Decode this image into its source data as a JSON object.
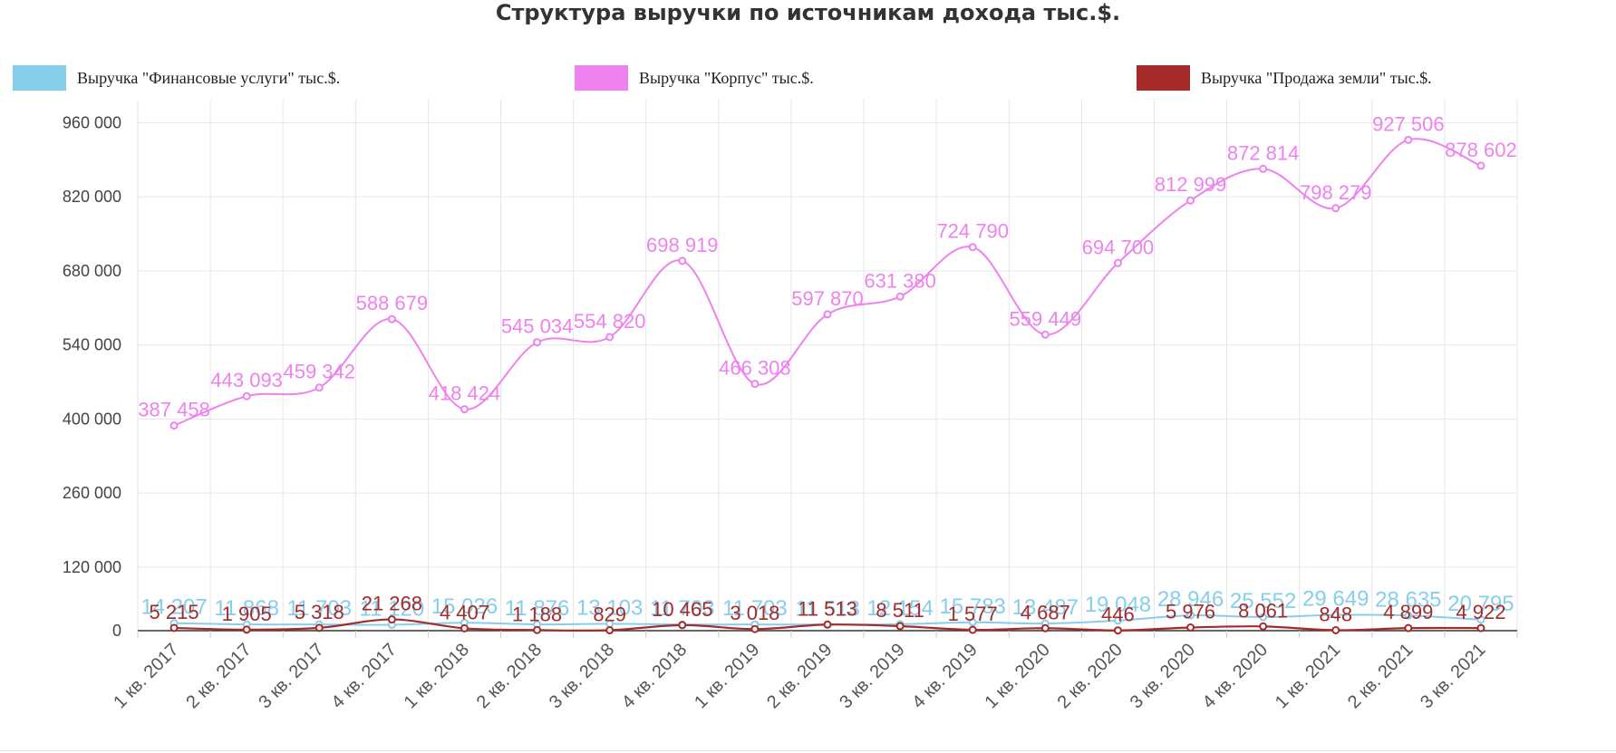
{
  "chart_data": {
    "type": "line",
    "title": "Структура выручки по источникам дохода тыс.$.",
    "xlabel": "",
    "ylabel": "",
    "ylim": [
      0,
      1000000
    ],
    "yticks": [
      0,
      120000,
      260000,
      400000,
      540000,
      680000,
      820000,
      960000
    ],
    "ytick_labels": [
      "0",
      "120 000",
      "260 000",
      "400 000",
      "540 000",
      "680 000",
      "820 000",
      "960 000"
    ],
    "grid": true,
    "legend_position": "top",
    "categories": [
      "1 кв. 2017",
      "2 кв. 2017",
      "3 кв. 2017",
      "4 кв. 2017",
      "1 кв. 2018",
      "2 кв. 2018",
      "3 кв. 2018",
      "4 кв. 2018",
      "1 кв. 2019",
      "2 кв. 2019",
      "3 кв. 2019",
      "4 кв. 2019",
      "1 кв. 2020",
      "2 кв. 2020",
      "3 кв. 2020",
      "4 кв. 2020",
      "1 кв. 2021",
      "2 кв. 2021",
      "3 кв. 2021"
    ],
    "series": [
      {
        "name": "Выручка \"Финансовые услуги\" тыс.$.",
        "color": "#87ceeb",
        "values": [
          14207,
          11868,
          11703,
          11120,
          15026,
          11876,
          13103,
          11703,
          11703,
          11513,
          12154,
          15783,
          13487,
          19048,
          28946,
          25552,
          29649,
          28635,
          20795
        ],
        "labels": [
          "14 207",
          "11 868",
          "11 703",
          "11 120",
          "15 026",
          "11 876",
          "13 103",
          "11 703",
          "11 703",
          "11 513",
          "12 154",
          "15 783",
          "13 487",
          "19 048",
          "28 946",
          "25 552",
          "29 649",
          "28 635",
          "20 795"
        ]
      },
      {
        "name": "Выручка \"Корпус\" тыс.$.",
        "color": "#ee82ee",
        "values": [
          387458,
          443093,
          459342,
          588679,
          418424,
          545034,
          554820,
          698919,
          466308,
          597870,
          631380,
          724790,
          559449,
          694700,
          812999,
          872814,
          798279,
          927506,
          878602
        ],
        "labels": [
          "387 458",
          "443 093",
          "459 342",
          "588 679",
          "418 424",
          "545 034",
          "554 820",
          "698 919",
          "466 308",
          "597 870",
          "631 380",
          "724 790",
          "559 449",
          "694 700",
          "812 999",
          "872 814",
          "798 279",
          "927 506",
          "878 602"
        ]
      },
      {
        "name": "Выручка \"Продажа земли\" тыс.$.",
        "color": "#a52a2a",
        "values": [
          5215,
          1905,
          5318,
          21268,
          4407,
          1188,
          829,
          10465,
          3018,
          11513,
          8511,
          1577,
          4687,
          446,
          5976,
          8061,
          848,
          4899,
          4922
        ],
        "labels": [
          "5 215",
          "1 905",
          "5 318",
          "21 268",
          "4 407",
          "1 188",
          "829",
          "10 465",
          "3 018",
          "11 513",
          "8 511",
          "1 577",
          "4 687",
          "446",
          "5 976",
          "8 061",
          "848",
          "4 899",
          "4 922"
        ]
      }
    ]
  }
}
